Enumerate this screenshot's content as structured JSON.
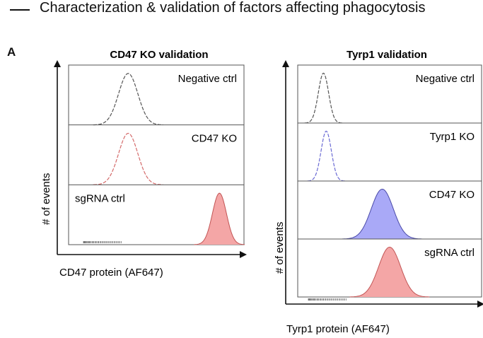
{
  "header": {
    "title": "Characterization & validation of factors affecting phagocytosis"
  },
  "panel_letter": "A",
  "chart_data": [
    {
      "type": "histogram",
      "title": "CD47 KO validation",
      "xlabel": "CD47 protein (AF647)",
      "ylabel": "# of events",
      "x_scale": "log",
      "stack_order_top_to_bottom": [
        "Negative ctrl",
        "CD47 KO",
        "sgRNA ctrl"
      ],
      "series": [
        {
          "name": "Negative ctrl",
          "peak_position": 0.34,
          "peak_width": 0.055,
          "filled": false,
          "color": "#555555",
          "fill": "none"
        },
        {
          "name": "CD47 KO",
          "peak_position": 0.34,
          "peak_width": 0.055,
          "filled": false,
          "color": "#d46a6a",
          "fill": "none"
        },
        {
          "name": "sgRNA ctrl",
          "peak_position": 0.86,
          "peak_width": 0.04,
          "filled": true,
          "color": "#c25555",
          "fill": "#f4a6a6"
        }
      ]
    },
    {
      "type": "histogram",
      "title": "Tyrp1 validation",
      "xlabel": "Tyrp1 protein (AF647)",
      "ylabel": "# of events",
      "x_scale": "log",
      "stack_order_top_to_bottom": [
        "Negative ctrl",
        "Tyrp1 KO",
        "CD47 KO",
        "sgRNA ctrl"
      ],
      "series": [
        {
          "name": "Negative ctrl",
          "peak_position": 0.14,
          "peak_width": 0.028,
          "filled": false,
          "color": "#555555",
          "fill": "none"
        },
        {
          "name": "Tyrp1 KO",
          "peak_position": 0.155,
          "peak_width": 0.028,
          "filled": false,
          "color": "#6a6ad4",
          "fill": "none"
        },
        {
          "name": "CD47 KO",
          "peak_position": 0.46,
          "peak_width": 0.06,
          "filled": true,
          "color": "#4a4aa8",
          "fill": "#a9a9f7"
        },
        {
          "name": "sgRNA ctrl",
          "peak_position": 0.5,
          "peak_width": 0.06,
          "filled": true,
          "color": "#c25555",
          "fill": "#f4a6a6"
        }
      ]
    }
  ]
}
